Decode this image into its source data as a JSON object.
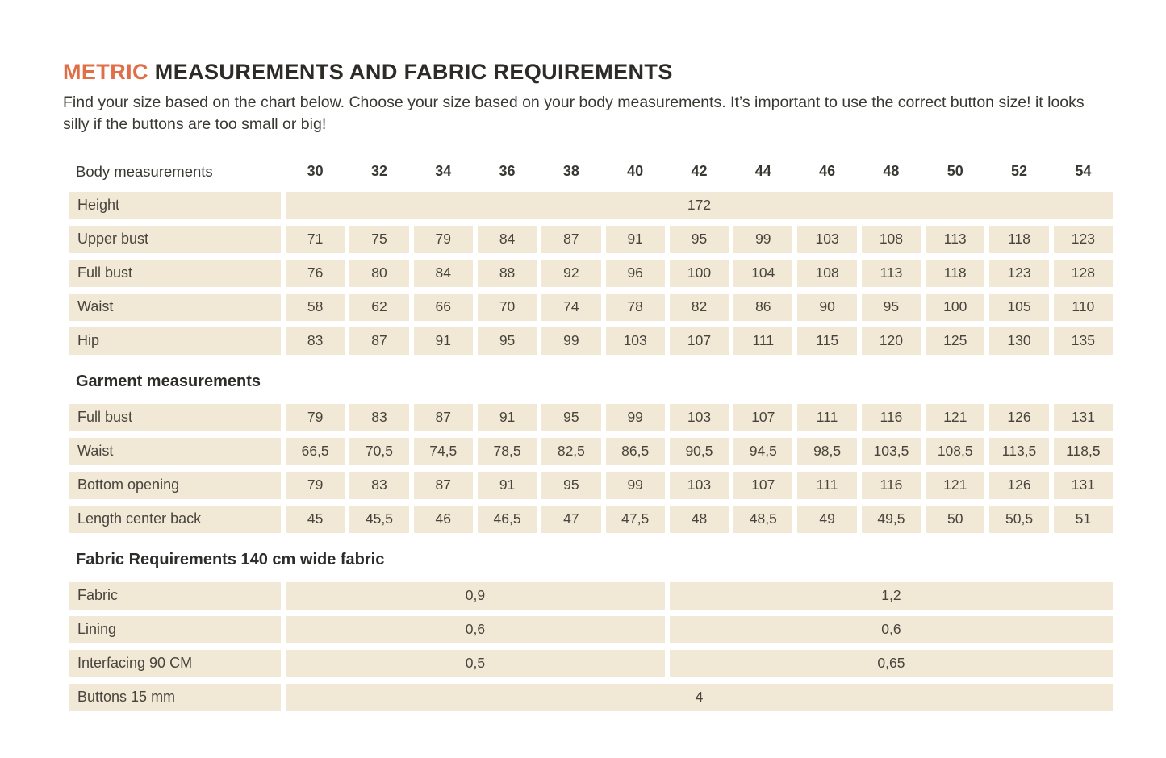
{
  "page": {
    "title_highlight": "METRIC",
    "title_rest": " MEASUREMENTS AND FABRIC REQUIREMENTS",
    "intro": "Find your size based on the chart below. Choose your size based on your body measurements.  It’s important to use the correct button size! it looks silly if the buttons are too small or big!"
  },
  "colors": {
    "accent_orange": "#e06f47",
    "cell_beige": "#f2e8d6",
    "text_dark": "#2f2d2a"
  },
  "sizes": [
    "30",
    "32",
    "34",
    "36",
    "38",
    "40",
    "42",
    "44",
    "46",
    "48",
    "50",
    "52",
    "54"
  ],
  "tables": {
    "body": {
      "header_label": "Body measurements",
      "rows": [
        {
          "type": "full",
          "label": "Height",
          "value": "172"
        },
        {
          "type": "values",
          "label": "Upper bust",
          "values": [
            "71",
            "75",
            "79",
            "84",
            "87",
            "91",
            "95",
            "99",
            "103",
            "108",
            "113",
            "118",
            "123"
          ]
        },
        {
          "type": "values",
          "label": "Full bust",
          "values": [
            "76",
            "80",
            "84",
            "88",
            "92",
            "96",
            "100",
            "104",
            "108",
            "113",
            "118",
            "123",
            "128"
          ]
        },
        {
          "type": "values",
          "label": "Waist",
          "values": [
            "58",
            "62",
            "66",
            "70",
            "74",
            "78",
            "82",
            "86",
            "90",
            "95",
            "100",
            "105",
            "110"
          ]
        },
        {
          "type": "values",
          "label": "Hip",
          "values": [
            "83",
            "87",
            "91",
            "95",
            "99",
            "103",
            "107",
            "111",
            "115",
            "120",
            "125",
            "130",
            "135"
          ]
        }
      ]
    },
    "garment": {
      "title": "Garment measurements",
      "rows": [
        {
          "type": "values",
          "label": "Full bust",
          "values": [
            "79",
            "83",
            "87",
            "91",
            "95",
            "99",
            "103",
            "107",
            "111",
            "116",
            "121",
            "126",
            "131"
          ]
        },
        {
          "type": "values",
          "label": "Waist",
          "values": [
            "66,5",
            "70,5",
            "74,5",
            "78,5",
            "82,5",
            "86,5",
            "90,5",
            "94,5",
            "98,5",
            "103,5",
            "108,5",
            "113,5",
            "118,5"
          ]
        },
        {
          "type": "values",
          "label": "Bottom opening",
          "values": [
            "79",
            "83",
            "87",
            "91",
            "95",
            "99",
            "103",
            "107",
            "111",
            "116",
            "121",
            "126",
            "131"
          ]
        },
        {
          "type": "values",
          "label": "Length center back",
          "values": [
            "45",
            "45,5",
            "46",
            "46,5",
            "47",
            "47,5",
            "48",
            "48,5",
            "49",
            "49,5",
            "50",
            "50,5",
            "51"
          ]
        }
      ]
    },
    "fabric": {
      "title": "Fabric Requirements 140 cm wide fabric",
      "rows": [
        {
          "type": "split",
          "label": "Fabric",
          "left": "0,9",
          "right": "1,2"
        },
        {
          "type": "split",
          "label": "Lining",
          "left": "0,6",
          "right": "0,6"
        },
        {
          "type": "split",
          "label": "Interfacing  90 CM",
          "left": "0,5",
          "right": "0,65"
        },
        {
          "type": "full",
          "label": "Buttons 15 mm",
          "value": "4"
        }
      ]
    }
  }
}
